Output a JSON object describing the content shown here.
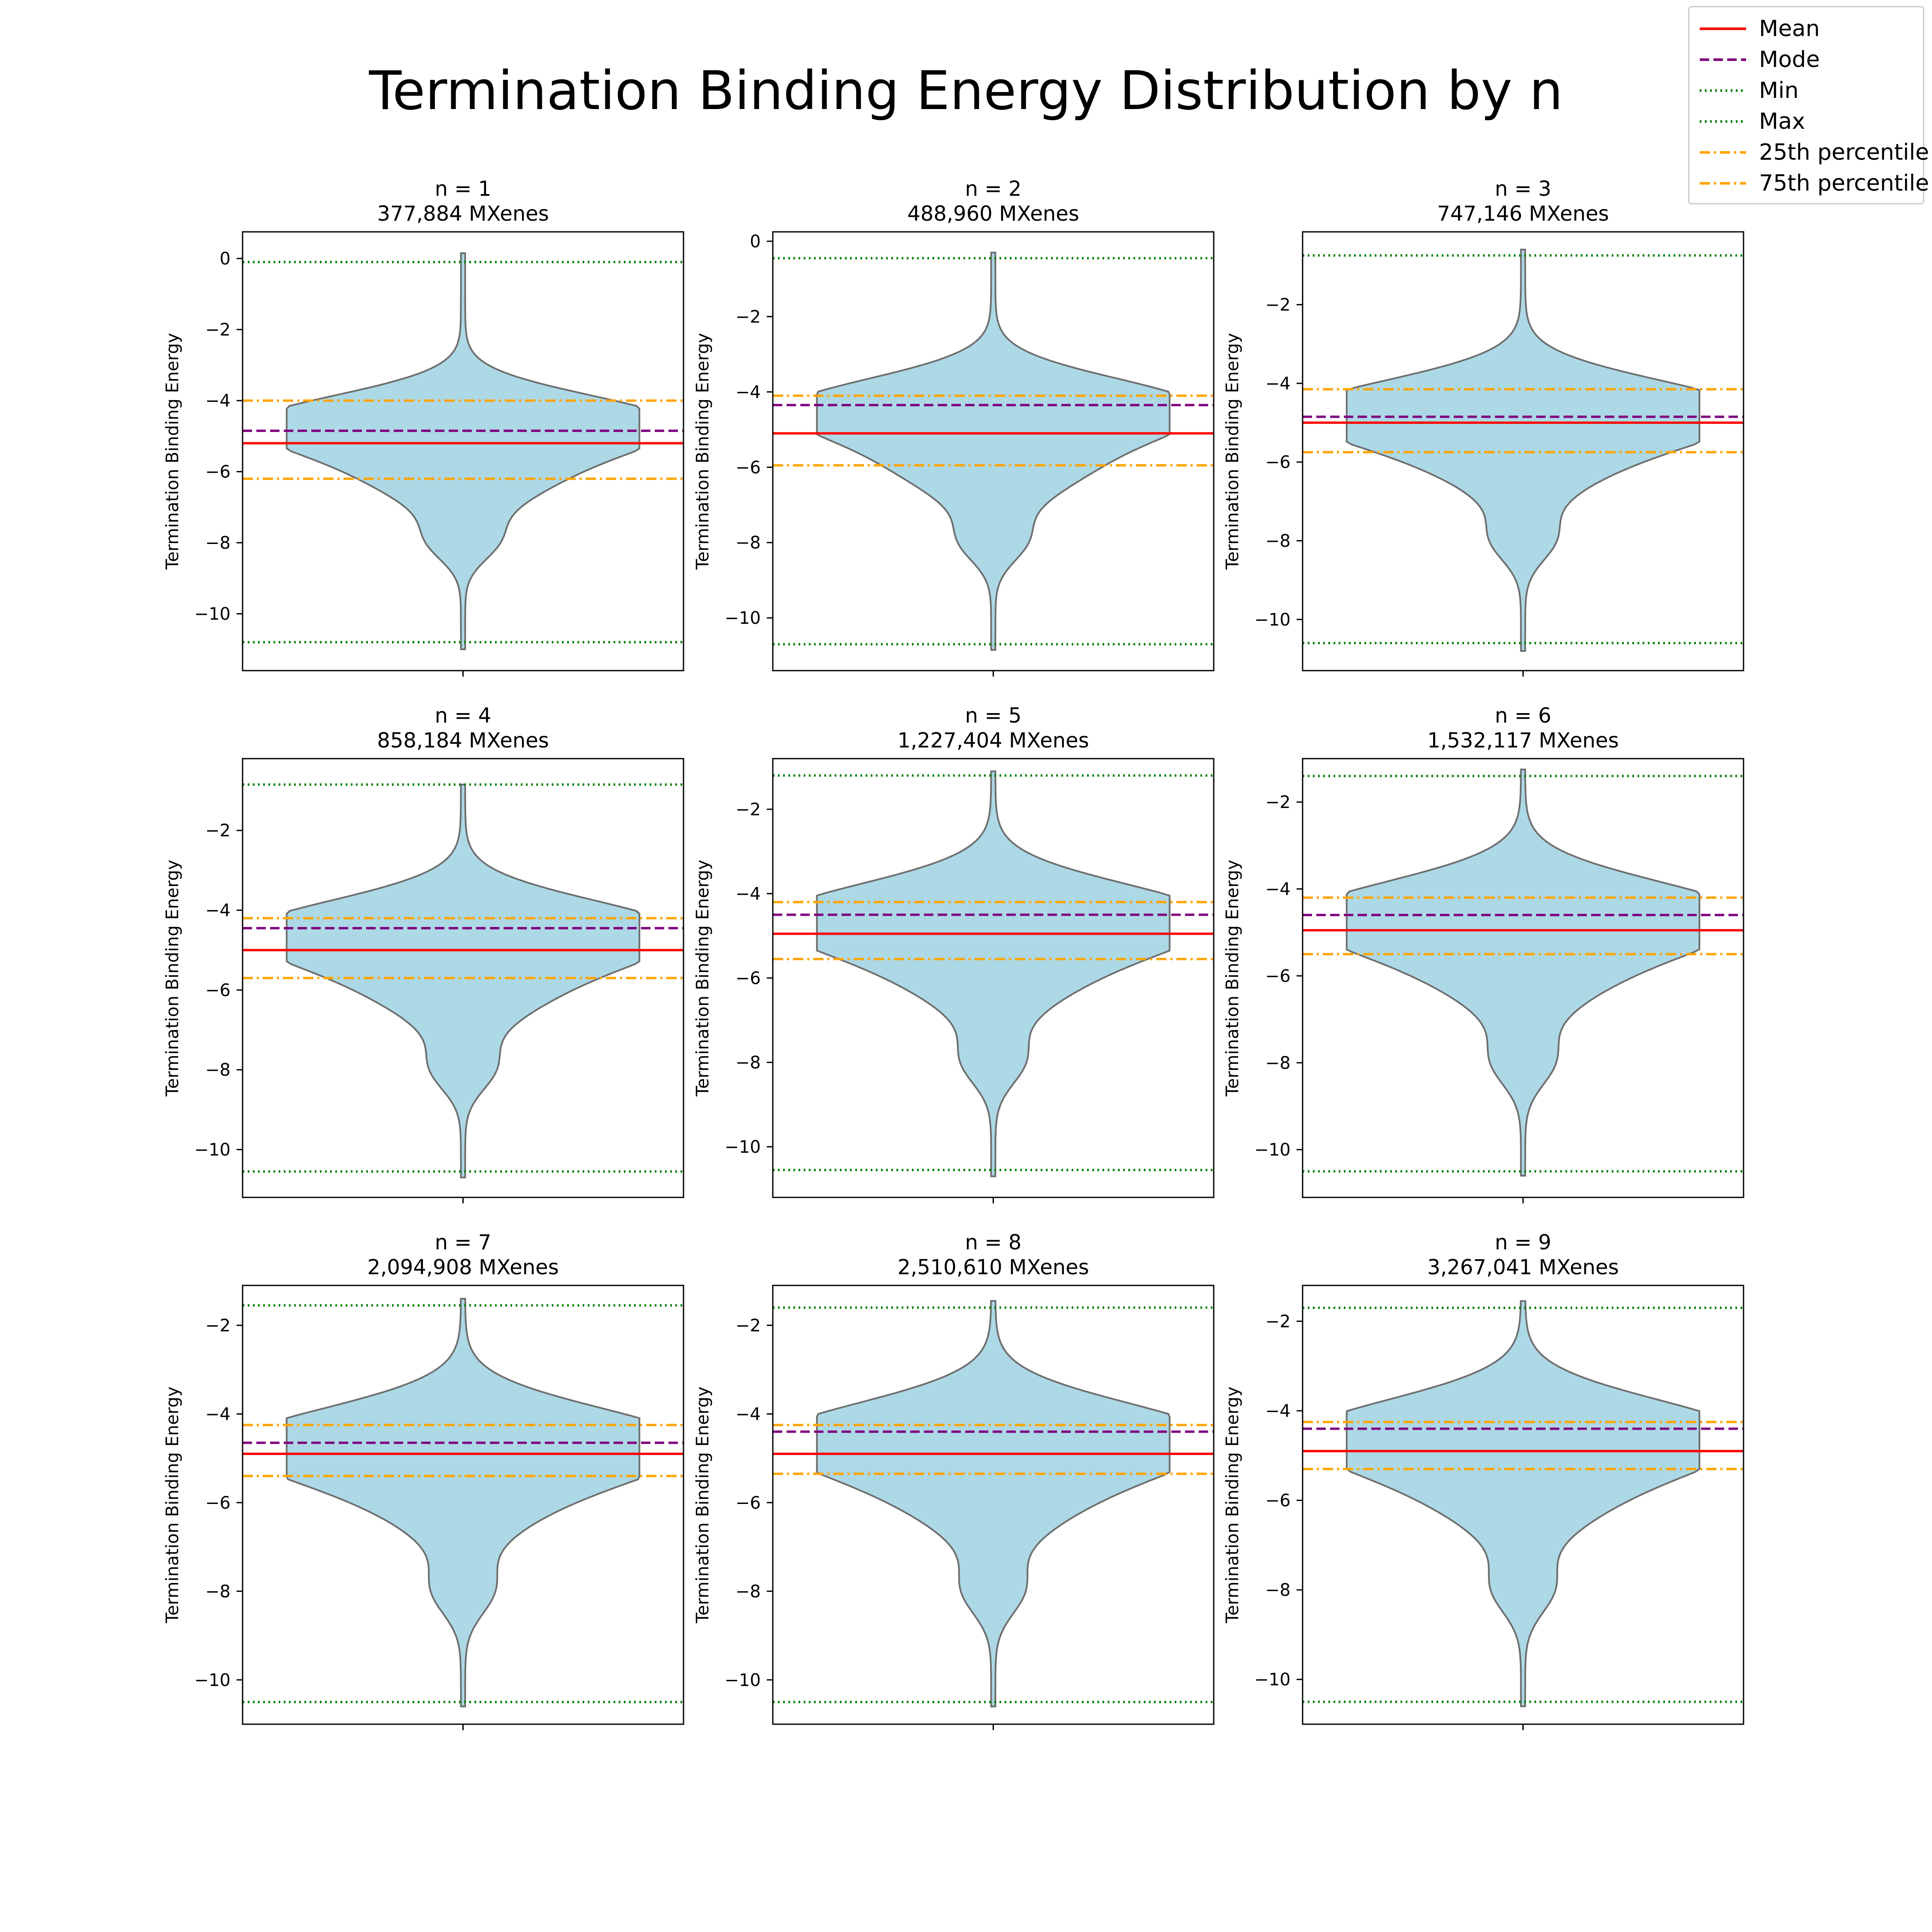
{
  "title": "Termination Binding Energy Distribution by n",
  "legend": [
    {
      "label": "Mean",
      "color": "#ff0000",
      "style": "solid"
    },
    {
      "label": "Mode",
      "color": "#800080",
      "style": "dashed"
    },
    {
      "label": "Min",
      "color": "#008000",
      "style": "dotted"
    },
    {
      "label": "Max",
      "color": "#008000",
      "style": "dotted"
    },
    {
      "label": "25th percentile",
      "color": "#ffa500",
      "style": "dashdot"
    },
    {
      "label": "75th percentile",
      "color": "#ffa500",
      "style": "dashdot"
    }
  ],
  "colors": {
    "violin_fill": "#add8e6",
    "violin_edge": "#6e6e6e"
  },
  "chart_data": [
    {
      "type": "violin",
      "title": "n = 1",
      "subtitle": "377,884 MXenes",
      "ylabel": "Termination Binding Energy",
      "ylim": [
        -11.6,
        0.75
      ],
      "yticks": [
        0,
        -2,
        -4,
        -6,
        -8,
        -10
      ],
      "violin_range": [
        -11.0,
        0.15
      ],
      "stats": {
        "mean": -5.2,
        "mode": -4.85,
        "min": -10.8,
        "max": -0.1,
        "p25": -6.2,
        "p75": -4.0
      }
    },
    {
      "type": "violin",
      "title": "n = 2",
      "subtitle": "488,960 MXenes",
      "ylabel": "Termination Binding Energy",
      "ylim": [
        -11.4,
        0.25
      ],
      "yticks": [
        0,
        -2,
        -4,
        -6,
        -8,
        -10
      ],
      "violin_range": [
        -10.85,
        -0.3
      ],
      "stats": {
        "mean": -5.1,
        "mode": -4.35,
        "min": -10.7,
        "max": -0.45,
        "p25": -5.95,
        "p75": -4.1
      }
    },
    {
      "type": "violin",
      "title": "n = 3",
      "subtitle": "747,146 MXenes",
      "ylabel": "Termination Binding Energy",
      "ylim": [
        -11.3,
        -0.15
      ],
      "yticks": [
        -2,
        -4,
        -6,
        -8,
        -10
      ],
      "violin_range": [
        -10.8,
        -0.6
      ],
      "stats": {
        "mean": -5.0,
        "mode": -4.85,
        "min": -10.6,
        "max": -0.75,
        "p25": -5.75,
        "p75": -4.15
      }
    },
    {
      "type": "violin",
      "title": "n = 4",
      "subtitle": "858,184 MXenes",
      "ylabel": "Termination Binding Energy",
      "ylim": [
        -11.2,
        -0.2
      ],
      "yticks": [
        -2,
        -4,
        -6,
        -8,
        -10
      ],
      "violin_range": [
        -10.7,
        -0.85
      ],
      "stats": {
        "mean": -5.0,
        "mode": -4.45,
        "min": -10.55,
        "max": -0.85,
        "p25": -5.7,
        "p75": -4.2
      }
    },
    {
      "type": "violin",
      "title": "n = 5",
      "subtitle": "1,227,404 MXenes",
      "ylabel": "Termination Binding Energy",
      "ylim": [
        -11.2,
        -0.8
      ],
      "yticks": [
        -2,
        -4,
        -6,
        -8,
        -10
      ],
      "violin_range": [
        -10.7,
        -1.1
      ],
      "stats": {
        "mean": -4.95,
        "mode": -4.5,
        "min": -10.55,
        "max": -1.2,
        "p25": -5.55,
        "p75": -4.2
      }
    },
    {
      "type": "violin",
      "title": "n = 6",
      "subtitle": "1,532,117 MXenes",
      "ylabel": "Termination Binding Energy",
      "ylim": [
        -11.1,
        -1.0
      ],
      "yticks": [
        -2,
        -4,
        -6,
        -8,
        -10
      ],
      "violin_range": [
        -10.6,
        -1.25
      ],
      "stats": {
        "mean": -4.95,
        "mode": -4.6,
        "min": -10.5,
        "max": -1.4,
        "p25": -5.5,
        "p75": -4.2
      }
    },
    {
      "type": "violin",
      "title": "n = 7",
      "subtitle": "2,094,908 MXenes",
      "ylabel": "Termination Binding Energy",
      "ylim": [
        -11.0,
        -1.1
      ],
      "yticks": [
        -2,
        -4,
        -6,
        -8,
        -10
      ],
      "violin_range": [
        -10.6,
        -1.4
      ],
      "stats": {
        "mean": -4.9,
        "mode": -4.65,
        "min": -10.5,
        "max": -1.55,
        "p25": -5.4,
        "p75": -4.25
      }
    },
    {
      "type": "violin",
      "title": "n = 8",
      "subtitle": "2,510,610 MXenes",
      "ylabel": "Termination Binding Energy",
      "ylim": [
        -11.0,
        -1.1
      ],
      "yticks": [
        -2,
        -4,
        -6,
        -8,
        -10
      ],
      "violin_range": [
        -10.6,
        -1.45
      ],
      "stats": {
        "mean": -4.9,
        "mode": -4.4,
        "min": -10.5,
        "max": -1.6,
        "p25": -5.35,
        "p75": -4.25
      }
    },
    {
      "type": "violin",
      "title": "n = 9",
      "subtitle": "3,267,041 MXenes",
      "ylabel": "Termination Binding Energy",
      "ylim": [
        -11.0,
        -1.2
      ],
      "yticks": [
        -2,
        -4,
        -6,
        -8,
        -10
      ],
      "violin_range": [
        -10.6,
        -1.55
      ],
      "stats": {
        "mean": -4.9,
        "mode": -4.4,
        "min": -10.5,
        "max": -1.7,
        "p25": -5.3,
        "p75": -4.25
      }
    }
  ]
}
